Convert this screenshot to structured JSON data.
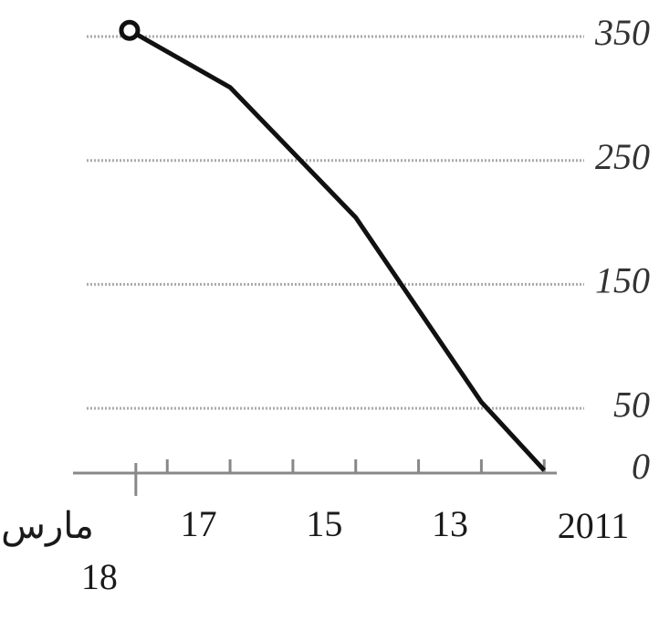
{
  "chart_data": {
    "type": "line",
    "x": [
      18.1,
      16.5,
      14.5,
      12.5,
      11.5
    ],
    "series": [
      {
        "color": "#111111",
        "values": [
          355,
          309,
          204,
          55,
          0
        ]
      }
    ],
    "xlim": [
      11.3,
      19.0
    ],
    "x_reversed": true,
    "xticks": [
      13,
      15,
      17,
      18
    ],
    "minor_xticks": [
      11.5,
      12.5,
      13.5,
      14.5,
      15.5,
      16.5,
      17.5
    ],
    "month_label": "مارس",
    "year_label": "2011",
    "ylim": [
      0,
      350
    ],
    "yticks": [
      0,
      50,
      150,
      250,
      350
    ],
    "grid": true
  }
}
